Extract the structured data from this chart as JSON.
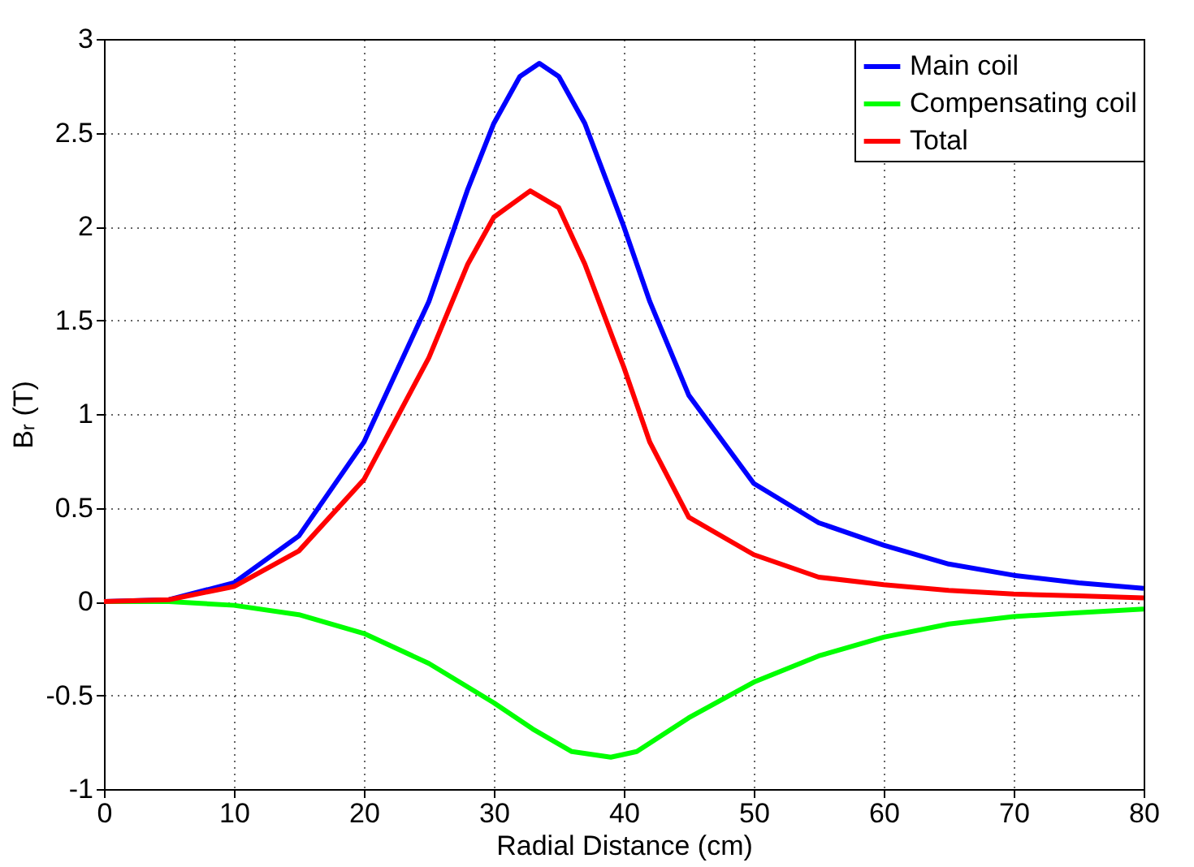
{
  "chart_data": {
    "type": "line",
    "xlabel": "Radial Distance (cm)",
    "ylabel": "Bᵣ (T)",
    "xlim": [
      0,
      80
    ],
    "xticks": [
      0,
      10,
      20,
      30,
      40,
      50,
      60,
      70,
      80
    ],
    "ylim": [
      -1,
      3
    ],
    "yticks": [
      -1,
      -0.5,
      0,
      0.5,
      1,
      1.5,
      2,
      2.5,
      3
    ],
    "grid": true,
    "legend": "top right",
    "line_style": "solid",
    "marker": "none",
    "series": [
      {
        "name": "Main coil",
        "color": "#0000ff",
        "x": [
          0,
          5,
          10,
          15,
          20,
          25,
          28,
          30,
          32,
          33.5,
          35,
          37,
          40,
          42,
          45,
          50,
          55,
          60,
          65,
          70,
          75,
          80
        ],
        "values": [
          0,
          0.01,
          0.1,
          0.35,
          0.85,
          1.6,
          2.2,
          2.55,
          2.8,
          2.87,
          2.8,
          2.55,
          2.0,
          1.6,
          1.1,
          0.63,
          0.42,
          0.3,
          0.2,
          0.14,
          0.1,
          0.07
        ]
      },
      {
        "name": "Compensating coil",
        "color": "#00ff00",
        "x": [
          0,
          5,
          10,
          15,
          20,
          25,
          30,
          33,
          36,
          39,
          41,
          45,
          50,
          55,
          60,
          65,
          70,
          75,
          80
        ],
        "values": [
          0,
          0,
          -0.02,
          -0.07,
          -0.17,
          -0.33,
          -0.54,
          -0.68,
          -0.8,
          -0.83,
          -0.8,
          -0.62,
          -0.43,
          -0.29,
          -0.19,
          -0.12,
          -0.08,
          -0.06,
          -0.04
        ]
      },
      {
        "name": "Total",
        "color": "#ff0000",
        "x": [
          0,
          5,
          10,
          15,
          20,
          25,
          28,
          30,
          32.8,
          35,
          37,
          40,
          42,
          45,
          50,
          55,
          60,
          65,
          70,
          75,
          80
        ],
        "values": [
          0,
          0.01,
          0.08,
          0.27,
          0.65,
          1.3,
          1.8,
          2.05,
          2.19,
          2.1,
          1.8,
          1.25,
          0.85,
          0.45,
          0.25,
          0.13,
          0.09,
          0.06,
          0.04,
          0.03,
          0.02
        ]
      }
    ]
  }
}
